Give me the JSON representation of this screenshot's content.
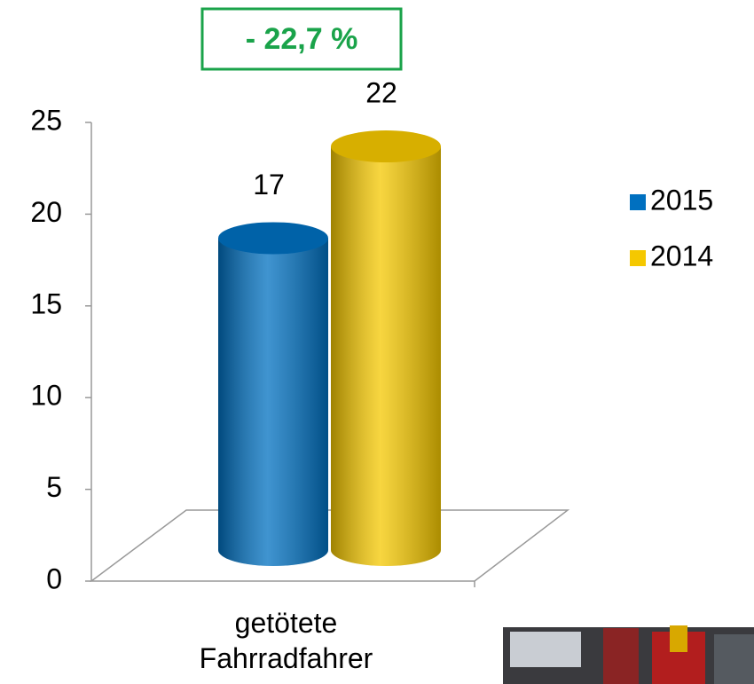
{
  "chart_data": {
    "type": "bar",
    "annotation": "- 22,7 %",
    "categories": [
      "getötete Fahrradfahrer"
    ],
    "series": [
      {
        "name": "2015",
        "color": "#0070c0",
        "values": [
          17
        ]
      },
      {
        "name": "2014",
        "color": "#f5c800",
        "values": [
          22
        ]
      }
    ],
    "ylim": [
      0,
      25
    ],
    "yticks": [
      0,
      5,
      10,
      15,
      20,
      25
    ],
    "legend": "right",
    "grid": false
  }
}
